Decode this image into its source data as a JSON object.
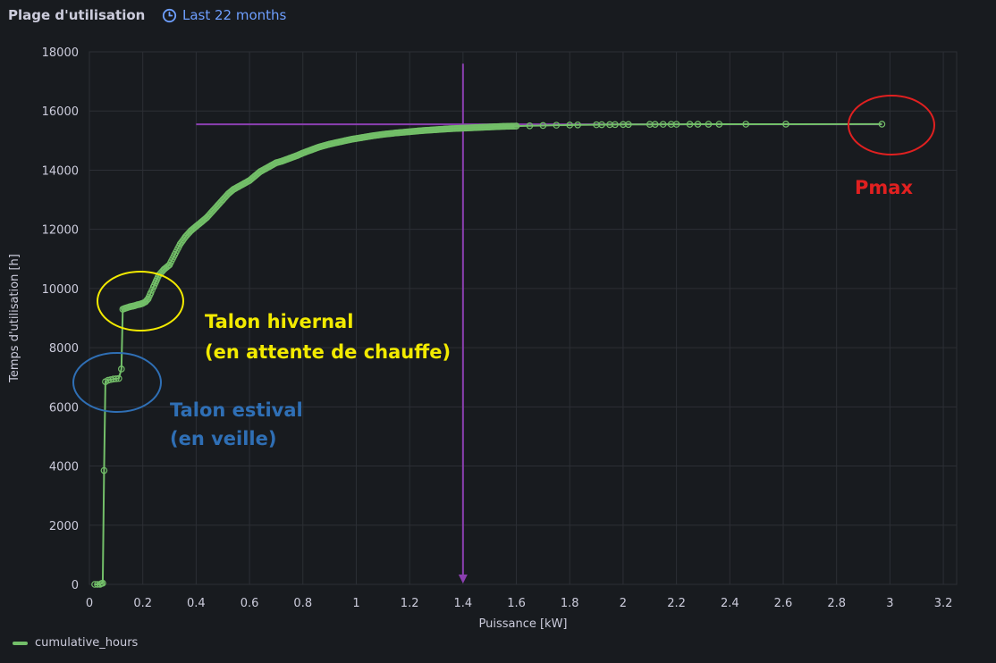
{
  "panel": {
    "title": "Plage d'utilisation",
    "time_range": "Last 22 months",
    "clock_icon": "clock-icon"
  },
  "chart_data": {
    "type": "scatter",
    "title": "",
    "xlabel": "Puissance [kW]",
    "ylabel": "Temps d'utilisation [h]",
    "xlim": [
      0,
      3.25
    ],
    "ylim": [
      0,
      18000
    ],
    "x_ticks": [
      "0",
      "0.2",
      "0.4",
      "0.6",
      "0.8",
      "1",
      "1.2",
      "1.4",
      "1.6",
      "1.8",
      "2",
      "2.2",
      "2.4",
      "2.6",
      "2.8",
      "3",
      "3.2"
    ],
    "y_ticks": [
      "0",
      "2000",
      "4000",
      "6000",
      "8000",
      "10000",
      "12000",
      "14000",
      "16000",
      "18000"
    ],
    "grid": true,
    "legend_position": "bottom-left",
    "colors": {
      "series": "#73bf69",
      "guide": "#8b3fb0",
      "pmax": "#e02020",
      "hivernal": "#f2ea00",
      "estival": "#2f6fb5"
    },
    "series": [
      {
        "name": "cumulative_hours",
        "x": [
          0.02,
          0.03,
          0.04,
          0.045,
          0.05,
          0.055,
          0.06,
          0.07,
          0.08,
          0.09,
          0.1,
          0.11,
          0.12,
          0.125,
          0.13,
          0.14,
          0.15,
          0.16,
          0.17,
          0.18,
          0.19,
          0.2,
          0.21,
          0.22,
          0.23,
          0.24,
          0.25,
          0.26,
          0.28,
          0.3,
          0.32,
          0.34,
          0.36,
          0.38,
          0.4,
          0.42,
          0.44,
          0.46,
          0.48,
          0.5,
          0.52,
          0.54,
          0.56,
          0.58,
          0.6,
          0.62,
          0.64,
          0.66,
          0.68,
          0.7,
          0.72,
          0.75,
          0.78,
          0.8,
          0.83,
          0.86,
          0.9,
          0.94,
          0.98,
          1.02,
          1.06,
          1.1,
          1.15,
          1.2,
          1.25,
          1.3,
          1.35,
          1.4,
          1.45,
          1.5,
          1.55,
          1.6,
          1.65,
          1.7,
          1.75,
          1.8,
          1.83,
          1.9,
          1.92,
          1.95,
          1.97,
          2.0,
          2.02,
          2.1,
          2.12,
          2.15,
          2.18,
          2.2,
          2.25,
          2.28,
          2.32,
          2.36,
          2.46,
          2.61,
          2.97
        ],
        "y": [
          0,
          0,
          0,
          30,
          40,
          3850,
          6850,
          6900,
          6920,
          6940,
          6950,
          6960,
          7280,
          9300,
          9320,
          9350,
          9380,
          9400,
          9420,
          9450,
          9470,
          9500,
          9550,
          9650,
          9850,
          10050,
          10250,
          10450,
          10650,
          10800,
          11150,
          11500,
          11750,
          11950,
          12100,
          12250,
          12400,
          12600,
          12800,
          13000,
          13200,
          13350,
          13450,
          13550,
          13650,
          13800,
          13950,
          14050,
          14150,
          14250,
          14300,
          14400,
          14500,
          14580,
          14680,
          14780,
          14880,
          14960,
          15040,
          15100,
          15160,
          15210,
          15260,
          15300,
          15340,
          15370,
          15400,
          15420,
          15440,
          15460,
          15480,
          15490,
          15500,
          15510,
          15520,
          15525,
          15530,
          15535,
          15538,
          15540,
          15542,
          15545,
          15545,
          15548,
          15548,
          15550,
          15550,
          15550,
          15552,
          15552,
          15553,
          15553,
          15554,
          15555,
          15556
        ]
      }
    ],
    "guides": {
      "vertical_x": 1.4,
      "vertical_y_top": 17600,
      "horizontal_y": 15550,
      "horizontal_x_start": 0.4,
      "horizontal_x_end": 2.97
    },
    "annotations": [
      {
        "key": "pmax",
        "text": "Pmax"
      },
      {
        "key": "hivernal",
        "lines": [
          "Talon hivernal",
          "(en attente de chauffe)"
        ]
      },
      {
        "key": "estival",
        "lines": [
          "Talon estival",
          "(en veille)"
        ]
      }
    ]
  },
  "legend": {
    "label": "cumulative_hours"
  }
}
